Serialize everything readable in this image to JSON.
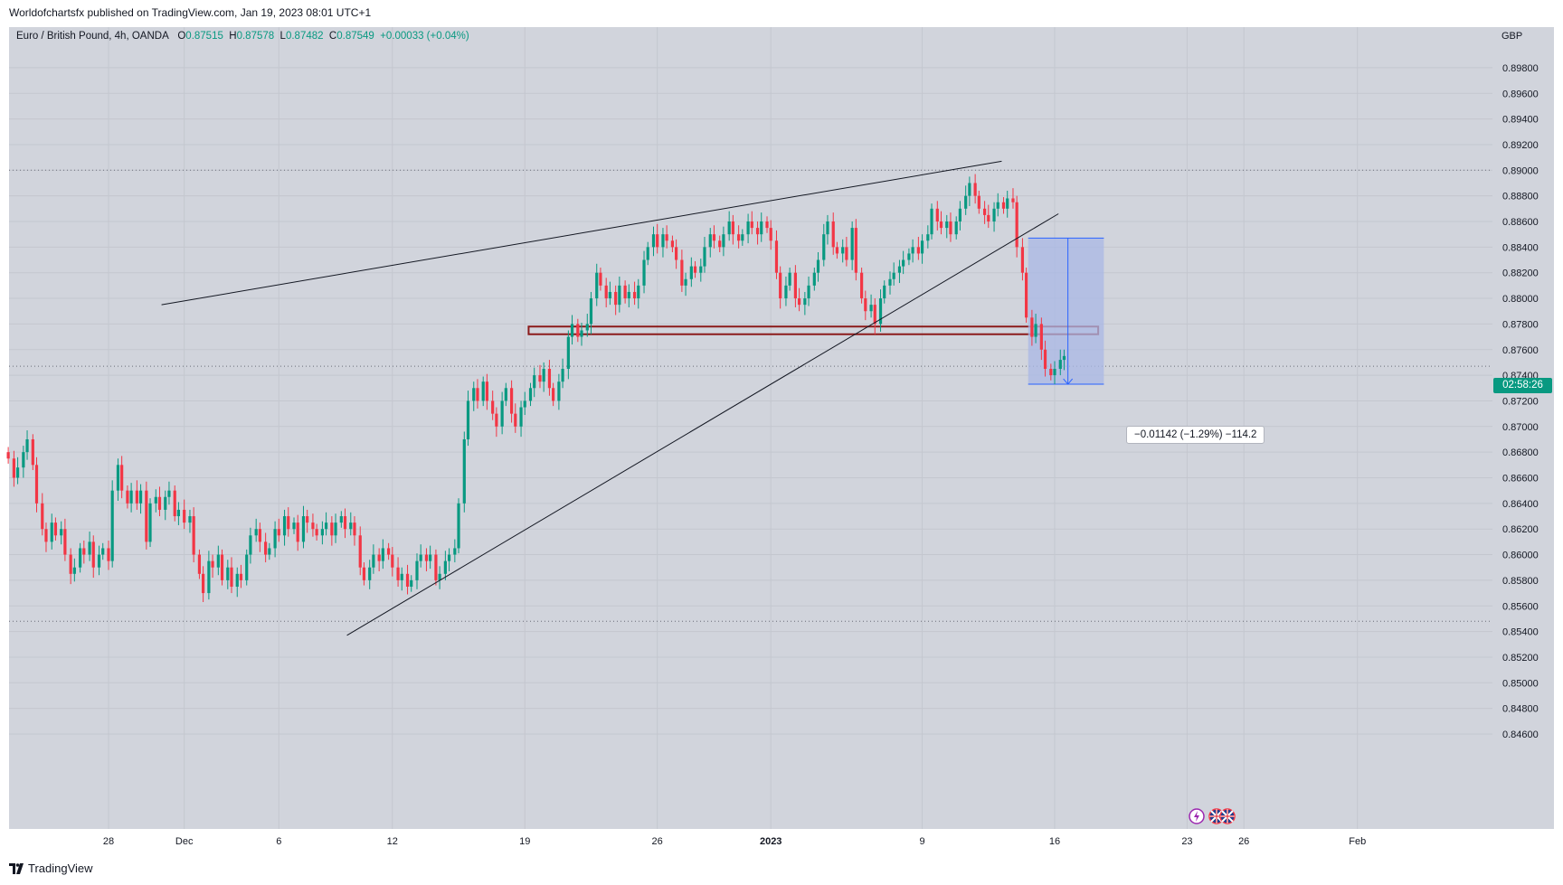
{
  "header": {
    "published": "Worldofchartsfx published on TradingView.com, Jan 19, 2023 08:01 UTC+1"
  },
  "legend": {
    "symbol": "Euro / British Pound, 4h, OANDA",
    "open_label": "O",
    "open": "0.87515",
    "high_label": "H",
    "high": "0.87578",
    "low_label": "L",
    "low": "0.87482",
    "close_label": "C",
    "close": "0.87549",
    "change": "+0.00033 (+0.04%)"
  },
  "price_axis": {
    "currency": "GBP",
    "countdown": "02:58:26"
  },
  "measure": {
    "label": "−0.01142 (−1.29%) −114.2"
  },
  "footer": {
    "brand": "TradingView"
  },
  "colors": {
    "up": "#089981",
    "down": "#f23645",
    "background": "#d1d4dc",
    "zone_border": "#8b1a1a",
    "measure_fill": "#a9b8e6",
    "measure_line": "#2962ff"
  },
  "icons": [
    "lightning-icon",
    "uk-flag-icon",
    "eu-flag-icon"
  ],
  "chart_data": {
    "type": "candlestick",
    "timeframe": "4h",
    "yticks": [
      0.846,
      0.848,
      0.85,
      0.852,
      0.854,
      0.856,
      0.858,
      0.86,
      0.862,
      0.864,
      0.866,
      0.868,
      0.87,
      0.872,
      0.874,
      0.876,
      0.878,
      0.88,
      0.882,
      0.884,
      0.886,
      0.888,
      0.89,
      0.892,
      0.894,
      0.896,
      0.898
    ],
    "ytick_labels": [
      "0.84600",
      "0.84800",
      "0.85000",
      "0.85200",
      "0.85400",
      "0.85600",
      "0.85800",
      "0.86000",
      "0.86200",
      "0.86400",
      "0.86600",
      "0.86800",
      "0.87000",
      "0.87200",
      "0.87400",
      "0.87600",
      "0.87800",
      "0.88000",
      "0.88200",
      "0.88400",
      "0.88600",
      "0.88800",
      "0.89000",
      "0.89200",
      "0.89400",
      "0.89600",
      "0.89800"
    ],
    "ylim": [
      0.8448,
      0.9
    ],
    "xticks": [
      {
        "label": "28",
        "day": -4
      },
      {
        "label": "Dec",
        "day": 0
      },
      {
        "label": "6",
        "day": 5
      },
      {
        "label": "12",
        "day": 11
      },
      {
        "label": "19",
        "day": 18
      },
      {
        "label": "26",
        "day": 25
      },
      {
        "label": "2023",
        "day": 31
      },
      {
        "label": "9",
        "day": 39
      },
      {
        "label": "16",
        "day": 46
      },
      {
        "label": "23",
        "day": 53
      },
      {
        "label": "26",
        "day": 56
      },
      {
        "label": "Feb",
        "day": 62
      }
    ],
    "xlim_days": [
      -9.5,
      66.5
    ],
    "note_x": "x values are days relative to Dec 1, 2022",
    "candles_close": [
      [
        -9.3,
        0.8675
      ],
      [
        -9.0,
        0.866
      ],
      [
        -8.8,
        0.8668
      ],
      [
        -8.5,
        0.868
      ],
      [
        -8.3,
        0.869
      ],
      [
        -8.0,
        0.867
      ],
      [
        -7.8,
        0.864
      ],
      [
        -7.5,
        0.862
      ],
      [
        -7.3,
        0.861
      ],
      [
        -7.0,
        0.8625
      ],
      [
        -6.8,
        0.8615
      ],
      [
        -6.5,
        0.862
      ],
      [
        -6.3,
        0.86
      ],
      [
        -6.0,
        0.8585
      ],
      [
        -5.8,
        0.859
      ],
      [
        -5.5,
        0.8605
      ],
      [
        -5.3,
        0.86
      ],
      [
        -5.0,
        0.861
      ],
      [
        -4.8,
        0.859
      ],
      [
        -4.5,
        0.86
      ],
      [
        -4.3,
        0.8605
      ],
      [
        -4.0,
        0.8595
      ],
      [
        -3.8,
        0.865
      ],
      [
        -3.5,
        0.867
      ],
      [
        -3.3,
        0.865
      ],
      [
        -3.0,
        0.864
      ],
      [
        -2.8,
        0.865
      ],
      [
        -2.5,
        0.864
      ],
      [
        -2.3,
        0.865
      ],
      [
        -2.0,
        0.861
      ],
      [
        -1.8,
        0.864
      ],
      [
        -1.5,
        0.8645
      ],
      [
        -1.3,
        0.8635
      ],
      [
        -1.0,
        0.8645
      ],
      [
        -0.8,
        0.865
      ],
      [
        -0.5,
        0.863
      ],
      [
        -0.3,
        0.8635
      ],
      [
        0.0,
        0.8625
      ],
      [
        0.3,
        0.863
      ],
      [
        0.5,
        0.86
      ],
      [
        0.8,
        0.8585
      ],
      [
        1.0,
        0.857
      ],
      [
        1.3,
        0.8595
      ],
      [
        1.5,
        0.859
      ],
      [
        1.8,
        0.86
      ],
      [
        2.0,
        0.858
      ],
      [
        2.3,
        0.859
      ],
      [
        2.5,
        0.8575
      ],
      [
        2.8,
        0.8585
      ],
      [
        3.0,
        0.858
      ],
      [
        3.3,
        0.86
      ],
      [
        3.5,
        0.8615
      ],
      [
        3.8,
        0.862
      ],
      [
        4.0,
        0.861
      ],
      [
        4.3,
        0.86
      ],
      [
        4.5,
        0.8605
      ],
      [
        4.8,
        0.862
      ],
      [
        5.0,
        0.8615
      ],
      [
        5.3,
        0.863
      ],
      [
        5.5,
        0.862
      ],
      [
        5.8,
        0.8625
      ],
      [
        6.0,
        0.861
      ],
      [
        6.3,
        0.863
      ],
      [
        6.5,
        0.8625
      ],
      [
        6.8,
        0.862
      ],
      [
        7.0,
        0.8615
      ],
      [
        7.3,
        0.862
      ],
      [
        7.5,
        0.8625
      ],
      [
        7.8,
        0.8615
      ],
      [
        8.0,
        0.8625
      ],
      [
        8.3,
        0.863
      ],
      [
        8.5,
        0.862
      ],
      [
        8.8,
        0.8625
      ],
      [
        9.0,
        0.8615
      ],
      [
        9.3,
        0.859
      ],
      [
        9.5,
        0.858
      ],
      [
        9.8,
        0.859
      ],
      [
        10.0,
        0.86
      ],
      [
        10.3,
        0.8595
      ],
      [
        10.5,
        0.8605
      ],
      [
        10.8,
        0.86
      ],
      [
        11.0,
        0.859
      ],
      [
        11.3,
        0.858
      ],
      [
        11.5,
        0.8585
      ],
      [
        11.8,
        0.8575
      ],
      [
        12.0,
        0.858
      ],
      [
        12.3,
        0.8595
      ],
      [
        12.5,
        0.86
      ],
      [
        12.8,
        0.8595
      ],
      [
        13.0,
        0.86
      ],
      [
        13.3,
        0.858
      ],
      [
        13.5,
        0.8585
      ],
      [
        13.8,
        0.8595
      ],
      [
        14.0,
        0.86
      ],
      [
        14.3,
        0.8605
      ],
      [
        14.5,
        0.864
      ],
      [
        14.8,
        0.869
      ],
      [
        15.0,
        0.872
      ],
      [
        15.3,
        0.873
      ],
      [
        15.5,
        0.872
      ],
      [
        15.8,
        0.8735
      ],
      [
        16.0,
        0.872
      ],
      [
        16.3,
        0.871
      ],
      [
        16.5,
        0.87
      ],
      [
        16.8,
        0.872
      ],
      [
        17.0,
        0.873
      ],
      [
        17.3,
        0.871
      ],
      [
        17.5,
        0.87
      ],
      [
        17.8,
        0.8715
      ],
      [
        18.0,
        0.872
      ],
      [
        18.3,
        0.873
      ],
      [
        18.5,
        0.874
      ],
      [
        18.8,
        0.8735
      ],
      [
        19.0,
        0.8745
      ],
      [
        19.3,
        0.873
      ],
      [
        19.5,
        0.872
      ],
      [
        19.8,
        0.8735
      ],
      [
        20.0,
        0.8745
      ],
      [
        20.3,
        0.877
      ],
      [
        20.5,
        0.878
      ],
      [
        20.8,
        0.877
      ],
      [
        21.0,
        0.8775
      ],
      [
        21.3,
        0.878
      ],
      [
        21.5,
        0.88
      ],
      [
        21.8,
        0.882
      ],
      [
        22.0,
        0.881
      ],
      [
        22.3,
        0.88
      ],
      [
        22.5,
        0.8805
      ],
      [
        22.8,
        0.8795
      ],
      [
        23.0,
        0.881
      ],
      [
        23.3,
        0.88
      ],
      [
        23.5,
        0.8805
      ],
      [
        23.8,
        0.88
      ],
      [
        24.0,
        0.881
      ],
      [
        24.3,
        0.883
      ],
      [
        24.5,
        0.884
      ],
      [
        24.8,
        0.885
      ],
      [
        25.0,
        0.884
      ],
      [
        25.3,
        0.885
      ],
      [
        25.5,
        0.8845
      ],
      [
        25.8,
        0.884
      ],
      [
        26.0,
        0.883
      ],
      [
        26.3,
        0.881
      ],
      [
        26.5,
        0.8815
      ],
      [
        26.8,
        0.8825
      ],
      [
        27.0,
        0.882
      ],
      [
        27.3,
        0.8825
      ],
      [
        27.5,
        0.884
      ],
      [
        27.8,
        0.885
      ],
      [
        28.0,
        0.8845
      ],
      [
        28.3,
        0.884
      ],
      [
        28.5,
        0.885
      ],
      [
        28.8,
        0.886
      ],
      [
        29.0,
        0.885
      ],
      [
        29.3,
        0.8845
      ],
      [
        29.5,
        0.885
      ],
      [
        29.8,
        0.886
      ],
      [
        30.0,
        0.8855
      ],
      [
        30.3,
        0.885
      ],
      [
        30.5,
        0.886
      ],
      [
        30.8,
        0.8855
      ],
      [
        31.0,
        0.8845
      ],
      [
        31.3,
        0.882
      ],
      [
        31.5,
        0.88
      ],
      [
        31.8,
        0.881
      ],
      [
        32.0,
        0.882
      ],
      [
        32.3,
        0.88
      ],
      [
        32.5,
        0.8795
      ],
      [
        32.8,
        0.88
      ],
      [
        33.0,
        0.881
      ],
      [
        33.3,
        0.882
      ],
      [
        33.5,
        0.883
      ],
      [
        33.8,
        0.885
      ],
      [
        34.0,
        0.886
      ],
      [
        34.3,
        0.884
      ],
      [
        34.5,
        0.8835
      ],
      [
        34.8,
        0.884
      ],
      [
        35.0,
        0.883
      ],
      [
        35.3,
        0.8855
      ],
      [
        35.5,
        0.882
      ],
      [
        35.8,
        0.88
      ],
      [
        36.0,
        0.879
      ],
      [
        36.3,
        0.8795
      ],
      [
        36.5,
        0.878
      ],
      [
        36.8,
        0.88
      ],
      [
        37.0,
        0.881
      ],
      [
        37.3,
        0.8815
      ],
      [
        37.5,
        0.882
      ],
      [
        37.8,
        0.8825
      ],
      [
        38.0,
        0.883
      ],
      [
        38.3,
        0.8835
      ],
      [
        38.5,
        0.884
      ],
      [
        38.8,
        0.8835
      ],
      [
        39.0,
        0.8845
      ],
      [
        39.3,
        0.885
      ],
      [
        39.5,
        0.887
      ],
      [
        39.8,
        0.886
      ],
      [
        40.0,
        0.8855
      ],
      [
        40.3,
        0.886
      ],
      [
        40.5,
        0.885
      ],
      [
        40.8,
        0.886
      ],
      [
        41.0,
        0.887
      ],
      [
        41.3,
        0.888
      ],
      [
        41.5,
        0.889
      ],
      [
        41.8,
        0.888
      ],
      [
        42.0,
        0.887
      ],
      [
        42.3,
        0.8865
      ],
      [
        42.5,
        0.886
      ],
      [
        42.8,
        0.887
      ],
      [
        43.0,
        0.8875
      ],
      [
        43.3,
        0.887
      ],
      [
        43.5,
        0.8878
      ],
      [
        43.8,
        0.8875
      ],
      [
        44.0,
        0.884
      ],
      [
        44.3,
        0.882
      ],
      [
        44.5,
        0.8785
      ],
      [
        44.8,
        0.877
      ],
      [
        45.0,
        0.878
      ],
      [
        45.3,
        0.876
      ],
      [
        45.5,
        0.8745
      ],
      [
        45.8,
        0.874
      ],
      [
        46.0,
        0.8745
      ],
      [
        46.3,
        0.8752
      ],
      [
        46.5,
        0.8755
      ]
    ],
    "annotations": [
      {
        "type": "trendline",
        "label": "upper rising-wedge line"
      },
      {
        "type": "trendline",
        "label": "lower rising-wedge line"
      },
      {
        "type": "zone",
        "price_top": 0.8778,
        "price_bottom": 0.8772
      },
      {
        "type": "measure",
        "from": 0.8847,
        "to": 0.8733
      }
    ],
    "dotted_levels": [
      0.89,
      0.8747,
      0.8548
    ]
  }
}
